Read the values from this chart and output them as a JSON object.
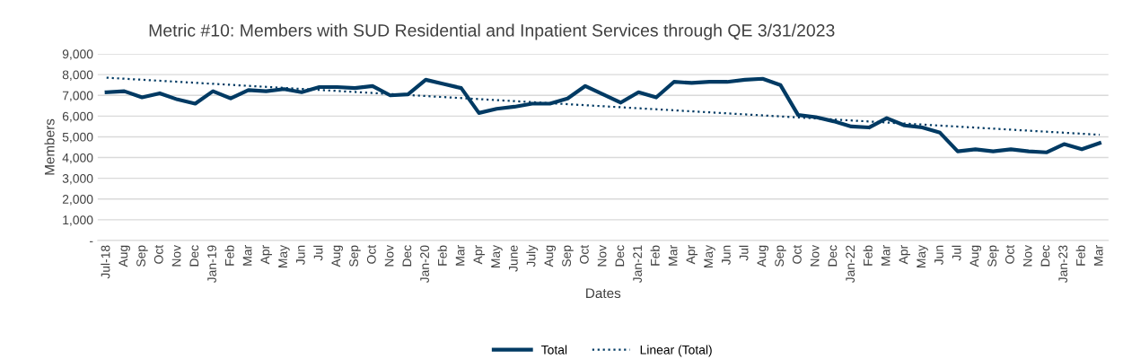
{
  "chart_data": {
    "type": "line",
    "title": "Metric #10: Members with SUD Residential and Inpatient Services through QE 3/31/2023",
    "xlabel": "Dates",
    "ylabel": "Members",
    "categories": [
      "Jul-18",
      "Aug",
      "Sep",
      "Oct",
      "Nov",
      "Dec",
      "Jan-19",
      "Feb",
      "Mar",
      "Apr",
      "May",
      "Jun",
      "Jul",
      "Aug",
      "Sep",
      "Oct",
      "Nov",
      "Dec",
      "Jan-20",
      "Feb",
      "Mar",
      "Apr",
      "May",
      "June",
      "July",
      "Aug",
      "Sep",
      "Oct",
      "Nov",
      "Dec",
      "Jan-21",
      "Feb",
      "Mar",
      "Apr",
      "May",
      "Jun",
      "Jul",
      "Aug",
      "Sep",
      "Oct",
      "Nov",
      "Dec",
      "Jan-22",
      "Feb",
      "Mar",
      "Apr",
      "May",
      "Jun",
      "Jul",
      "Aug",
      "Sep",
      "Oct",
      "Nov",
      "Dec",
      "Jan-23",
      "Feb",
      "Mar"
    ],
    "series": [
      {
        "name": "Total",
        "color": "#003a63",
        "line_style": "solid",
        "values": [
          7150,
          7200,
          6900,
          7100,
          6800,
          6600,
          7200,
          6850,
          7250,
          7200,
          7300,
          7150,
          7400,
          7400,
          7350,
          7450,
          7000,
          7050,
          7750,
          7550,
          7350,
          6150,
          6350,
          6450,
          6600,
          6600,
          6850,
          7450,
          7050,
          6650,
          7150,
          6900,
          7650,
          7600,
          7650,
          7650,
          7750,
          7800,
          7500,
          6050,
          5950,
          5750,
          5500,
          5450,
          5900,
          5550,
          5450,
          5200,
          4300,
          4400,
          4300,
          4400,
          4300,
          4250,
          4650,
          4400,
          4700
        ]
      },
      {
        "name": "Linear (Total)",
        "color": "#003a63",
        "line_style": "dotted",
        "values": [
          7850,
          null,
          null,
          null,
          null,
          null,
          null,
          null,
          null,
          null,
          null,
          null,
          null,
          null,
          null,
          null,
          null,
          null,
          null,
          null,
          null,
          null,
          null,
          null,
          null,
          null,
          null,
          null,
          null,
          null,
          null,
          null,
          null,
          null,
          null,
          null,
          null,
          null,
          null,
          null,
          null,
          null,
          null,
          null,
          null,
          null,
          null,
          null,
          null,
          null,
          null,
          null,
          null,
          null,
          null,
          null,
          5100
        ]
      }
    ],
    "ylim": [
      0,
      9000
    ],
    "yticks": [
      {
        "value": 0,
        "label": "-"
      },
      {
        "value": 1000,
        "label": "1,000"
      },
      {
        "value": 2000,
        "label": "2,000"
      },
      {
        "value": 3000,
        "label": "3,000"
      },
      {
        "value": 4000,
        "label": "4,000"
      },
      {
        "value": 5000,
        "label": "5,000"
      },
      {
        "value": 6000,
        "label": "6,000"
      },
      {
        "value": 7000,
        "label": "7,000"
      },
      {
        "value": 8000,
        "label": "8,000"
      },
      {
        "value": 9000,
        "label": "9,000"
      }
    ],
    "grid": "y",
    "legend": "bottom"
  }
}
